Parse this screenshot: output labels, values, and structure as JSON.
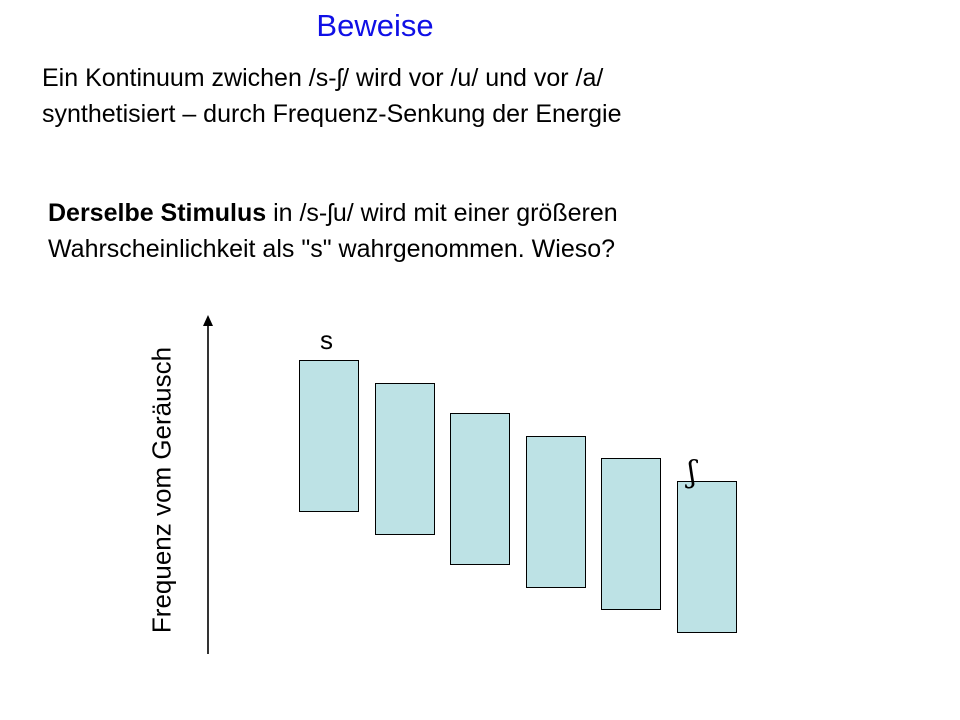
{
  "title": "Beweise",
  "para1": {
    "line1": "Ein Kontinuum zwichen /s-ʃ/ wird vor /u/ und vor /a/",
    "line2": "synthetisiert – durch Frequenz-Senkung der Energie"
  },
  "para2": {
    "bold": "Derselbe Stimulus",
    "rest1": " in /s-ʃu/ wird mit einer größeren",
    "line2": "Wahrscheinlichkeit als \"s\" wahrgenommen. Wieso?"
  },
  "diagram": {
    "axis_label": "Frequenz vom Geräusch",
    "label_top": "s",
    "label_bottom": "ʃ",
    "steps": 6,
    "bar_color": "#bde2e5"
  }
}
